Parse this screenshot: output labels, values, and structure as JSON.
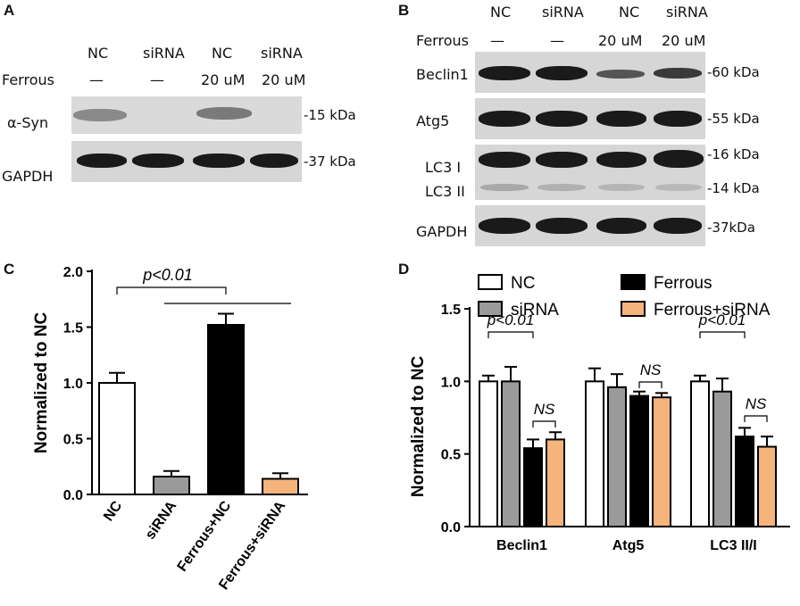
{
  "panelA": {
    "label": "A",
    "lanes": [
      "NC",
      "siRNA",
      "NC",
      "siRNA"
    ],
    "ferrous_label": "Ferrous",
    "ferrous": [
      "—",
      "—",
      "20 uM",
      "20 uM"
    ],
    "rows": [
      {
        "name": "α-Syn",
        "kda": "-15 kDa"
      },
      {
        "name": "GAPDH",
        "kda": "-37 kDa"
      }
    ]
  },
  "panelB": {
    "label": "B",
    "lanes": [
      "NC",
      "siRNA",
      "NC",
      "siRNA"
    ],
    "ferrous_label": "Ferrous",
    "ferrous": [
      "—",
      "—",
      "20 uM",
      "20 uM"
    ],
    "rows": [
      {
        "name": "Beclin1",
        "kda": "-60 kDa"
      },
      {
        "name": "Atg5",
        "kda": "-55 kDa"
      },
      {
        "name": "LC3  I",
        "kda": "-16 kDa"
      },
      {
        "name": "LC3 II",
        "kda": "-14 kDa"
      },
      {
        "name": "GAPDH",
        "kda": "-37kDa"
      }
    ]
  },
  "chart_data": [
    {
      "panel": "C",
      "type": "bar",
      "ylabel": "Normalized to NC",
      "ylim": [
        0,
        2.0
      ],
      "yticks": [
        "0.0",
        "0.5",
        "1.0",
        "1.5",
        "2.0"
      ],
      "categories": [
        "NC",
        "siRNA",
        "Ferrous+NC",
        "Ferrous+siRNA"
      ],
      "values": [
        1.0,
        0.16,
        1.52,
        0.14
      ],
      "errors": [
        0.09,
        0.05,
        0.1,
        0.05
      ],
      "colors": [
        "#ffffff",
        "#9a9a9a",
        "#000000",
        "#f4b47c"
      ],
      "annotation": "p<0.01"
    },
    {
      "panel": "D",
      "type": "bar",
      "ylabel": "Normalized to NC",
      "ylim": [
        0,
        1.5
      ],
      "yticks": [
        "0.0",
        "0.5",
        "1.0",
        "1.5"
      ],
      "categories": [
        "Beclin1",
        "Atg5",
        "LC3   II/I"
      ],
      "series": [
        {
          "name": "NC",
          "color": "#ffffff",
          "values": [
            1.0,
            1.0,
            1.0
          ],
          "errors": [
            0.04,
            0.09,
            0.04
          ]
        },
        {
          "name": "siRNA",
          "color": "#9a9a9a",
          "values": [
            1.0,
            0.96,
            0.93
          ],
          "errors": [
            0.1,
            0.09,
            0.09
          ]
        },
        {
          "name": "Ferrous",
          "color": "#000000",
          "values": [
            0.54,
            0.9,
            0.62
          ],
          "errors": [
            0.06,
            0.03,
            0.06
          ]
        },
        {
          "name": "Ferrous+siRNA",
          "color": "#f4b47c",
          "values": [
            0.6,
            0.89,
            0.55
          ],
          "errors": [
            0.05,
            0.03,
            0.07
          ]
        }
      ],
      "annotations": [
        "p<0.01",
        "NS",
        "NS",
        "p<0.01",
        "NS"
      ]
    }
  ]
}
